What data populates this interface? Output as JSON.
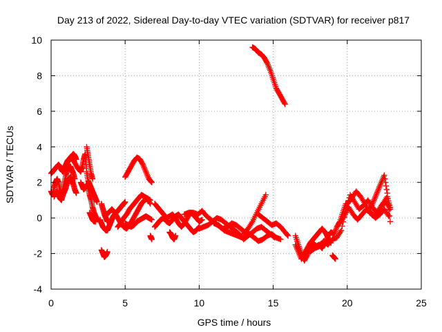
{
  "chart_data": {
    "type": "scatter",
    "title": "Day 213 of 2022, Sidereal Day-to-day VTEC variation (SDTVAR) for receiver p817",
    "xlabel": "GPS time / hours",
    "ylabel": "SDTVAR / TECUs",
    "xlim": [
      0,
      25
    ],
    "ylim": [
      -4,
      10
    ],
    "xticks": [
      0,
      5,
      10,
      15,
      20,
      25
    ],
    "yticks": [
      -4,
      -2,
      0,
      2,
      4,
      6,
      8,
      10
    ],
    "x_tick_labels": [
      "0",
      "5",
      "10",
      "15",
      "20",
      "25"
    ],
    "y_tick_labels": [
      "-4",
      "-2",
      "0",
      "2",
      "4",
      "6",
      "8",
      "10"
    ],
    "grid": true,
    "marker": "+",
    "series": [
      {
        "name": "p817",
        "color": "#ff0000",
        "tracks": [
          {
            "x": [
              0.0,
              0.1,
              0.2,
              0.3,
              0.4,
              0.5,
              0.6,
              0.7,
              0.8,
              0.9,
              1.0,
              1.1,
              1.2,
              1.3,
              1.4,
              1.5,
              1.6,
              1.7
            ],
            "y": [
              2.5,
              2.6,
              2.7,
              2.8,
              2.9,
              3.0,
              2.9,
              2.7,
              2.6,
              2.8,
              3.0,
              3.2,
              3.3,
              3.4,
              3.5,
              3.6,
              3.5,
              3.3
            ]
          },
          {
            "x": [
              0.0,
              0.1,
              0.2,
              0.3,
              0.4,
              0.5,
              0.6,
              0.7,
              0.8,
              0.9,
              1.0,
              1.1,
              1.2,
              1.3,
              1.4,
              1.5,
              1.6
            ],
            "y": [
              1.5,
              1.3,
              1.7,
              2.0,
              2.2,
              2.0,
              1.6,
              1.3,
              1.6,
              2.0,
              2.4,
              2.7,
              2.9,
              2.9,
              2.7,
              2.5,
              2.2
            ]
          },
          {
            "x": [
              0.2,
              0.3,
              0.4,
              0.5,
              0.6,
              0.7,
              0.8,
              0.9,
              1.0,
              1.1,
              1.2,
              1.3,
              1.4,
              1.5,
              1.6,
              1.7
            ],
            "y": [
              1.2,
              1.4,
              1.5,
              1.3,
              1.1,
              1.0,
              1.3,
              1.5,
              1.7,
              2.0,
              2.2,
              2.3,
              2.1,
              1.9,
              1.6,
              1.4
            ]
          },
          {
            "x": [
              1.2,
              1.4,
              1.6,
              1.8,
              2.0,
              2.1,
              2.2,
              2.3,
              2.4,
              2.5,
              2.6,
              2.7,
              2.8,
              2.9,
              3.0,
              3.1
            ],
            "y": [
              3.2,
              3.4,
              3.1,
              2.8,
              2.6,
              2.9,
              3.3,
              3.6,
              2.6,
              2.1,
              1.9,
              1.7,
              1.5,
              1.3,
              1.1,
              0.9
            ]
          },
          {
            "x": [
              2.0,
              2.1,
              2.2,
              2.3,
              2.4,
              2.5,
              2.6,
              2.7,
              2.8,
              2.9,
              3.0,
              3.1
            ],
            "y": [
              2.0,
              1.8,
              1.6,
              1.7,
              1.9,
              1.7,
              1.3,
              1.0,
              0.6,
              0.3,
              0.1,
              -0.1
            ]
          },
          {
            "x": [
              2.4,
              2.5,
              2.6,
              2.7,
              2.8
            ],
            "y": [
              4.0,
              3.5,
              3.0,
              2.5,
              2.2
            ]
          },
          {
            "x": [
              2.6,
              2.7,
              2.8,
              2.9,
              3.0
            ],
            "y": [
              0.3,
              0.1,
              -0.1,
              -0.2,
              -0.2
            ]
          },
          {
            "x": [
              3.4,
              3.5,
              3.6,
              3.7,
              3.8
            ],
            "y": [
              -1.8,
              -2.0,
              -2.2,
              -2.1,
              -1.9
            ]
          },
          {
            "x": [
              3.3,
              3.4,
              3.5,
              3.6,
              3.7,
              3.8,
              3.9,
              4.0,
              4.1,
              4.2,
              4.3,
              4.4,
              4.5,
              4.6,
              4.7,
              4.8,
              4.9,
              5.0
            ],
            "y": [
              -0.1,
              -0.3,
              -0.5,
              -0.6,
              -0.7,
              -0.7,
              -0.5,
              -0.3,
              -0.1,
              0.1,
              0.2,
              0.3,
              0.4,
              0.5,
              0.6,
              0.7,
              0.8,
              0.9
            ]
          },
          {
            "x": [
              3.4,
              3.5,
              3.6,
              3.7,
              3.8
            ],
            "y": [
              0.8,
              0.5,
              0.2,
              0.0,
              -0.2
            ]
          },
          {
            "x": [
              3.7,
              3.9,
              4.1,
              4.3,
              4.5,
              4.7,
              4.9,
              5.1,
              5.3,
              5.5,
              5.7,
              5.9,
              6.1,
              6.3,
              6.5,
              6.7
            ],
            "y": [
              0.2,
              0.3,
              0.5,
              0.3,
              0.0,
              -0.3,
              -0.5,
              -0.6,
              -0.4,
              -0.1,
              0.2,
              0.5,
              0.8,
              1.0,
              1.1,
              1.0
            ]
          },
          {
            "x": [
              4.5,
              4.7,
              4.9,
              5.1,
              5.3,
              5.5,
              5.7,
              5.9,
              6.1,
              6.3,
              6.5,
              6.7
            ],
            "y": [
              -0.5,
              -0.3,
              0.0,
              0.2,
              0.5,
              0.7,
              0.9,
              1.1,
              1.3,
              1.2,
              1.1,
              0.8
            ]
          },
          {
            "x": [
              5.0,
              5.2,
              5.4,
              5.6,
              5.8,
              6.0,
              6.2,
              6.4,
              6.6,
              6.8
            ],
            "y": [
              -0.3,
              -0.4,
              -0.5,
              -0.4,
              -0.2,
              -0.1,
              0.0,
              0.1,
              0.0,
              -0.1
            ]
          },
          {
            "x": [
              5.0,
              5.2,
              5.4,
              5.6,
              5.8,
              6.0,
              6.2,
              6.4,
              6.6,
              6.8
            ],
            "y": [
              2.3,
              2.6,
              2.9,
              3.2,
              3.4,
              3.3,
              3.0,
              2.6,
              2.2,
              2.0
            ]
          },
          {
            "x": [
              6.7,
              6.75,
              6.8
            ],
            "y": [
              -1.0,
              -1.1,
              -1.2
            ]
          },
          {
            "x": [
              7.0,
              7.2,
              7.4,
              7.6,
              7.8,
              8.0,
              8.2,
              8.4,
              8.6,
              8.8,
              9.0,
              9.2,
              9.4,
              9.6,
              9.8,
              10.0,
              10.2
            ],
            "y": [
              0.8,
              0.6,
              0.4,
              0.2,
              0.0,
              0.1,
              0.2,
              0.0,
              -0.3,
              -0.5,
              -0.3,
              0.0,
              0.3,
              0.2,
              0.0,
              -0.2,
              -0.1
            ]
          },
          {
            "x": [
              7.0,
              7.2,
              7.4,
              7.6,
              7.8,
              8.0,
              8.2,
              8.4,
              8.6,
              8.8,
              9.0,
              9.2,
              9.4,
              9.6,
              9.8,
              10.0
            ],
            "y": [
              -0.5,
              -0.3,
              -0.1,
              0.0,
              -0.2,
              -0.3,
              -0.1,
              0.1,
              0.2,
              0.0,
              -0.2,
              -0.4,
              -0.6,
              -0.8,
              -0.7,
              -0.5
            ]
          },
          {
            "x": [
              8.0,
              8.1,
              8.2,
              8.3,
              8.4
            ],
            "y": [
              -0.8,
              -0.9,
              -1.1,
              -1.2,
              -1.0
            ]
          },
          {
            "x": [
              9.0,
              9.3,
              9.6,
              9.9,
              10.2,
              10.5,
              10.8,
              11.1,
              11.4,
              11.7,
              12.0,
              12.3,
              12.6,
              12.9
            ],
            "y": [
              0.2,
              0.3,
              0.3,
              0.2,
              0.4,
              0.1,
              -0.1,
              -0.3,
              -0.5,
              -0.7,
              -0.8,
              -0.9,
              -1.0,
              -1.1
            ]
          },
          {
            "x": [
              10.0,
              10.3,
              10.6,
              10.9,
              11.2,
              11.5,
              11.8,
              12.1,
              12.4,
              12.7,
              13.0,
              13.3,
              13.6,
              13.9,
              14.2,
              14.5,
              14.8,
              15.1
            ],
            "y": [
              -0.6,
              -0.5,
              -0.4,
              -0.2,
              0.0,
              -0.1,
              -0.3,
              -0.5,
              -0.7,
              -0.9,
              -1.2,
              -1.0,
              -0.8,
              -0.6,
              -0.5,
              -0.7,
              -0.9,
              -1.1
            ]
          },
          {
            "x": [
              11.0,
              11.3,
              11.6,
              11.9,
              12.2,
              12.5,
              12.8,
              13.1,
              13.4,
              13.7,
              14.0,
              14.3,
              14.6,
              14.9,
              15.2,
              15.5
            ],
            "y": [
              -0.3,
              -0.4,
              -0.6,
              -0.5,
              -0.3,
              -0.4,
              -0.6,
              -0.8,
              -0.9,
              -1.1,
              -1.3,
              -1.2,
              -1.0,
              -0.9,
              -1.1,
              -1.2
            ]
          },
          {
            "x": [
              13.0,
              13.3,
              13.6,
              13.9,
              14.2,
              14.5
            ],
            "y": [
              -0.9,
              -0.6,
              -0.2,
              0.3,
              0.8,
              1.3
            ]
          },
          {
            "x": [
              14.0,
              14.3,
              14.6,
              14.9,
              15.2,
              15.5,
              15.8,
              16.0
            ],
            "y": [
              0.2,
              0.0,
              -0.2,
              -0.4,
              -0.3,
              -0.5,
              -0.8,
              -1.0
            ]
          },
          {
            "x": [
              13.6,
              13.8,
              14.0,
              14.2,
              14.4,
              14.6,
              14.8,
              15.0,
              15.2,
              15.4,
              15.6,
              15.8
            ],
            "y": [
              9.6,
              9.5,
              9.3,
              9.2,
              9.0,
              8.7,
              8.3,
              7.8,
              7.3,
              7.0,
              6.7,
              6.4
            ]
          },
          {
            "x": [
              16.5,
              16.7,
              16.9,
              17.1,
              17.3,
              17.5,
              17.7,
              17.9,
              18.1,
              18.3,
              18.5,
              18.7,
              18.9,
              19.1,
              19.3,
              19.5,
              19.7,
              19.9
            ],
            "y": [
              -1.0,
              -1.5,
              -2.0,
              -2.4,
              -2.1,
              -1.7,
              -1.4,
              -1.6,
              -1.5,
              -1.7,
              -1.4,
              -1.0,
              -0.8,
              -0.9,
              -0.5,
              -0.2,
              0.3,
              0.8
            ]
          },
          {
            "x": [
              16.5,
              16.7,
              16.9,
              17.1,
              17.3,
              17.5,
              17.7,
              17.9,
              18.1,
              18.3,
              18.5,
              18.7,
              18.9
            ],
            "y": [
              -1.5,
              -1.9,
              -2.3,
              -2.0,
              -1.7,
              -1.4,
              -1.2,
              -1.0,
              -0.8,
              -0.6,
              -0.8,
              -1.1,
              -1.4
            ]
          },
          {
            "x": [
              17.5,
              17.8,
              18.1,
              18.4,
              18.7,
              19.0,
              19.3,
              19.6,
              19.9,
              20.2,
              20.5,
              20.8,
              21.1,
              21.4,
              21.7,
              22.0,
              22.3,
              22.6,
              22.9
            ],
            "y": [
              -1.9,
              -1.7,
              -1.6,
              -1.3,
              -1.5,
              -1.2,
              -1.1,
              -0.7,
              0.5,
              1.3,
              0.9,
              0.5,
              0.7,
              1.0,
              0.6,
              0.3,
              0.7,
              0.9,
              0.5
            ]
          },
          {
            "x": [
              19.5,
              19.8,
              20.1,
              20.4,
              20.7,
              21.0,
              21.3,
              21.6,
              21.9,
              22.2,
              22.5,
              22.8
            ],
            "y": [
              -0.3,
              0.1,
              0.6,
              0.2,
              -0.1,
              0.2,
              0.5,
              0.3,
              0.0,
              0.2,
              0.5,
              0.1
            ]
          },
          {
            "x": [
              20.0,
              20.3,
              20.6,
              20.9,
              21.2,
              21.5,
              21.8,
              22.1,
              22.4,
              22.7,
              22.9
            ],
            "y": [
              0.8,
              1.1,
              1.5,
              1.2,
              0.8,
              0.3,
              0.1,
              0.3,
              0.8,
              1.2,
              0.6
            ]
          },
          {
            "x": [
              21.5,
              21.7,
              21.9,
              22.1,
              22.3,
              22.5,
              22.7,
              22.9
            ],
            "y": [
              0.4,
              0.8,
              1.2,
              1.6,
              2.0,
              2.4,
              1.4,
              -0.2
            ]
          },
          {
            "x": [
              19.0,
              19.1,
              19.2
            ],
            "y": [
              -2.1,
              -2.2,
              -2.3
            ]
          }
        ]
      }
    ]
  }
}
